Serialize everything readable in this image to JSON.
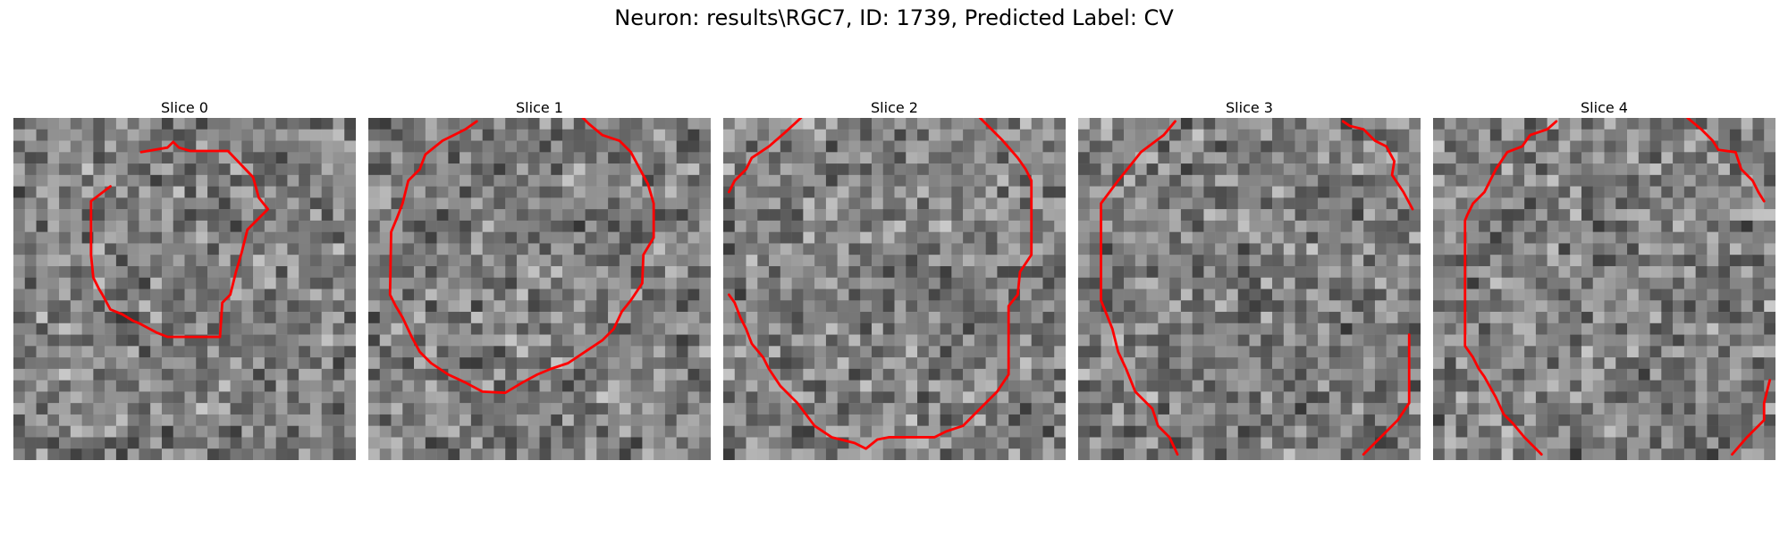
{
  "figure": {
    "title": "Neuron: results\\RGC7, ID: 1739, Predicted Label: CV"
  },
  "contour_color": "#ff0000",
  "grid_size": 30,
  "slices": [
    {
      "title": "Slice 0",
      "contours": [
        [
          [
            11.2,
            3.0
          ],
          [
            13.5,
            2.6
          ],
          [
            14.0,
            2.1
          ],
          [
            14.5,
            2.6
          ],
          [
            15.5,
            2.9
          ],
          [
            18.8,
            2.9
          ],
          [
            21.0,
            5.2
          ],
          [
            21.5,
            7.0
          ],
          [
            22.3,
            8.0
          ],
          [
            20.5,
            9.8
          ],
          [
            20.0,
            11.8
          ],
          [
            19.5,
            13.5
          ],
          [
            19.0,
            15.5
          ],
          [
            18.3,
            16.2
          ],
          [
            18.1,
            19.2
          ],
          [
            13.5,
            19.2
          ],
          [
            12.5,
            18.8
          ],
          [
            11.0,
            18.0
          ],
          [
            10.5,
            17.8
          ],
          [
            9.5,
            17.2
          ],
          [
            8.5,
            16.8
          ],
          [
            7.8,
            15.5
          ],
          [
            7.5,
            15.0
          ],
          [
            7.0,
            14.0
          ],
          [
            6.8,
            12.0
          ],
          [
            6.8,
            7.3
          ],
          [
            8.5,
            6.0
          ]
        ]
      ]
    },
    {
      "title": "Slice 1",
      "contours": [
        [
          [
            9.5,
            0.3
          ],
          [
            8.5,
            1.0
          ],
          [
            6.5,
            2.0
          ],
          [
            5.0,
            3.2
          ],
          [
            4.5,
            4.5
          ],
          [
            3.5,
            5.5
          ],
          [
            3.0,
            7.5
          ],
          [
            2.5,
            8.8
          ],
          [
            2.0,
            10.0
          ],
          [
            1.9,
            15.5
          ],
          [
            2.4,
            16.5
          ],
          [
            3.0,
            17.5
          ],
          [
            3.8,
            19.2
          ],
          [
            4.5,
            20.5
          ],
          [
            5.5,
            21.5
          ],
          [
            7.0,
            22.5
          ],
          [
            8.5,
            23.2
          ],
          [
            10.0,
            24.0
          ],
          [
            12.0,
            24.1
          ],
          [
            13.5,
            23.2
          ],
          [
            14.8,
            22.5
          ],
          [
            16.0,
            22.0
          ],
          [
            17.5,
            21.5
          ],
          [
            19.0,
            20.5
          ],
          [
            20.5,
            19.5
          ],
          [
            21.5,
            18.5
          ],
          [
            22.2,
            17.0
          ],
          [
            23.0,
            16.0
          ],
          [
            24.0,
            14.5
          ],
          [
            24.1,
            12.0
          ],
          [
            25.0,
            10.5
          ],
          [
            25.0,
            7.5
          ],
          [
            24.5,
            5.8
          ],
          [
            23.8,
            4.5
          ],
          [
            23.0,
            3.0
          ],
          [
            22.0,
            2.0
          ],
          [
            20.5,
            1.5
          ],
          [
            19.3,
            0.5
          ],
          [
            18.8,
            0.0
          ]
        ]
      ]
    },
    {
      "title": "Slice 2",
      "contours": [
        [
          [
            6.8,
            0.0
          ],
          [
            5.5,
            1.2
          ],
          [
            4.0,
            2.5
          ],
          [
            2.5,
            3.5
          ],
          [
            2.0,
            4.5
          ],
          [
            1.0,
            5.5
          ],
          [
            0.5,
            6.5
          ]
        ],
        [
          [
            0.5,
            15.5
          ],
          [
            1.0,
            16.2
          ],
          [
            1.5,
            17.5
          ],
          [
            2.0,
            18.5
          ],
          [
            2.5,
            19.8
          ],
          [
            3.5,
            21.0
          ],
          [
            4.0,
            22.0
          ],
          [
            5.0,
            23.5
          ],
          [
            6.5,
            25.0
          ],
          [
            8.0,
            27.0
          ],
          [
            9.5,
            28.0
          ],
          [
            11.5,
            28.5
          ],
          [
            12.5,
            29.0
          ],
          [
            13.5,
            28.2
          ],
          [
            14.5,
            28.0
          ],
          [
            18.5,
            28.0
          ],
          [
            19.5,
            27.5
          ],
          [
            21.0,
            27.0
          ],
          [
            22.5,
            25.5
          ],
          [
            24.0,
            24.0
          ],
          [
            25.0,
            22.5
          ],
          [
            25.0,
            16.5
          ],
          [
            25.8,
            15.5
          ],
          [
            26.0,
            13.5
          ],
          [
            27.0,
            12.0
          ],
          [
            27.0,
            11.5
          ],
          [
            27.0,
            5.5
          ],
          [
            26.5,
            4.5
          ],
          [
            25.8,
            3.5
          ],
          [
            24.5,
            2.0
          ],
          [
            22.5,
            0.0
          ]
        ]
      ]
    },
    {
      "title": "Slice 3",
      "contours": [
        [
          [
            8.5,
            0.3
          ],
          [
            7.5,
            1.5
          ],
          [
            5.5,
            3.0
          ],
          [
            3.5,
            5.5
          ],
          [
            2.0,
            7.5
          ],
          [
            2.0,
            16.0
          ],
          [
            2.4,
            17.0
          ],
          [
            3.0,
            18.5
          ],
          [
            3.5,
            20.5
          ],
          [
            4.2,
            22.0
          ],
          [
            5.0,
            24.0
          ],
          [
            6.5,
            25.5
          ],
          [
            7.0,
            27.0
          ],
          [
            8.0,
            28.0
          ],
          [
            8.7,
            29.5
          ]
        ],
        [
          [
            23.2,
            0.3
          ],
          [
            23.8,
            0.7
          ],
          [
            25.0,
            1.0
          ],
          [
            26.0,
            2.0
          ],
          [
            27.0,
            2.5
          ],
          [
            27.7,
            3.8
          ],
          [
            27.5,
            5.0
          ],
          [
            28.5,
            6.5
          ],
          [
            29.3,
            8.0
          ]
        ],
        [
          [
            29.0,
            19.0
          ],
          [
            29.0,
            25.0
          ],
          [
            28.0,
            26.5
          ],
          [
            26.5,
            28.0
          ],
          [
            25.0,
            29.5
          ]
        ]
      ]
    },
    {
      "title": "Slice 4",
      "contours": [
        [
          [
            10.8,
            0.3
          ],
          [
            10.0,
            1.0
          ],
          [
            8.5,
            1.5
          ],
          [
            7.8,
            2.5
          ],
          [
            6.5,
            3.0
          ],
          [
            5.5,
            4.5
          ],
          [
            5.0,
            5.5
          ],
          [
            4.5,
            6.5
          ],
          [
            3.5,
            7.5
          ],
          [
            3.0,
            8.5
          ],
          [
            2.8,
            9.0
          ],
          [
            2.8,
            20.0
          ],
          [
            3.5,
            21.0
          ],
          [
            4.0,
            22.0
          ],
          [
            4.5,
            22.7
          ],
          [
            5.5,
            24.5
          ],
          [
            6.2,
            26.0
          ],
          [
            7.0,
            26.8
          ],
          [
            8.0,
            28.0
          ],
          [
            9.5,
            29.5
          ]
        ],
        [
          [
            22.3,
            0.0
          ],
          [
            23.5,
            1.0
          ],
          [
            24.5,
            2.0
          ],
          [
            25.0,
            2.8
          ],
          [
            26.5,
            3.0
          ],
          [
            27.0,
            4.5
          ],
          [
            28.0,
            5.5
          ],
          [
            28.5,
            6.5
          ],
          [
            29.0,
            7.3
          ]
        ],
        [
          [
            29.5,
            23.0
          ],
          [
            29.0,
            25.0
          ],
          [
            29.0,
            26.5
          ],
          [
            27.5,
            28.0
          ],
          [
            26.2,
            29.5
          ]
        ]
      ]
    }
  ]
}
